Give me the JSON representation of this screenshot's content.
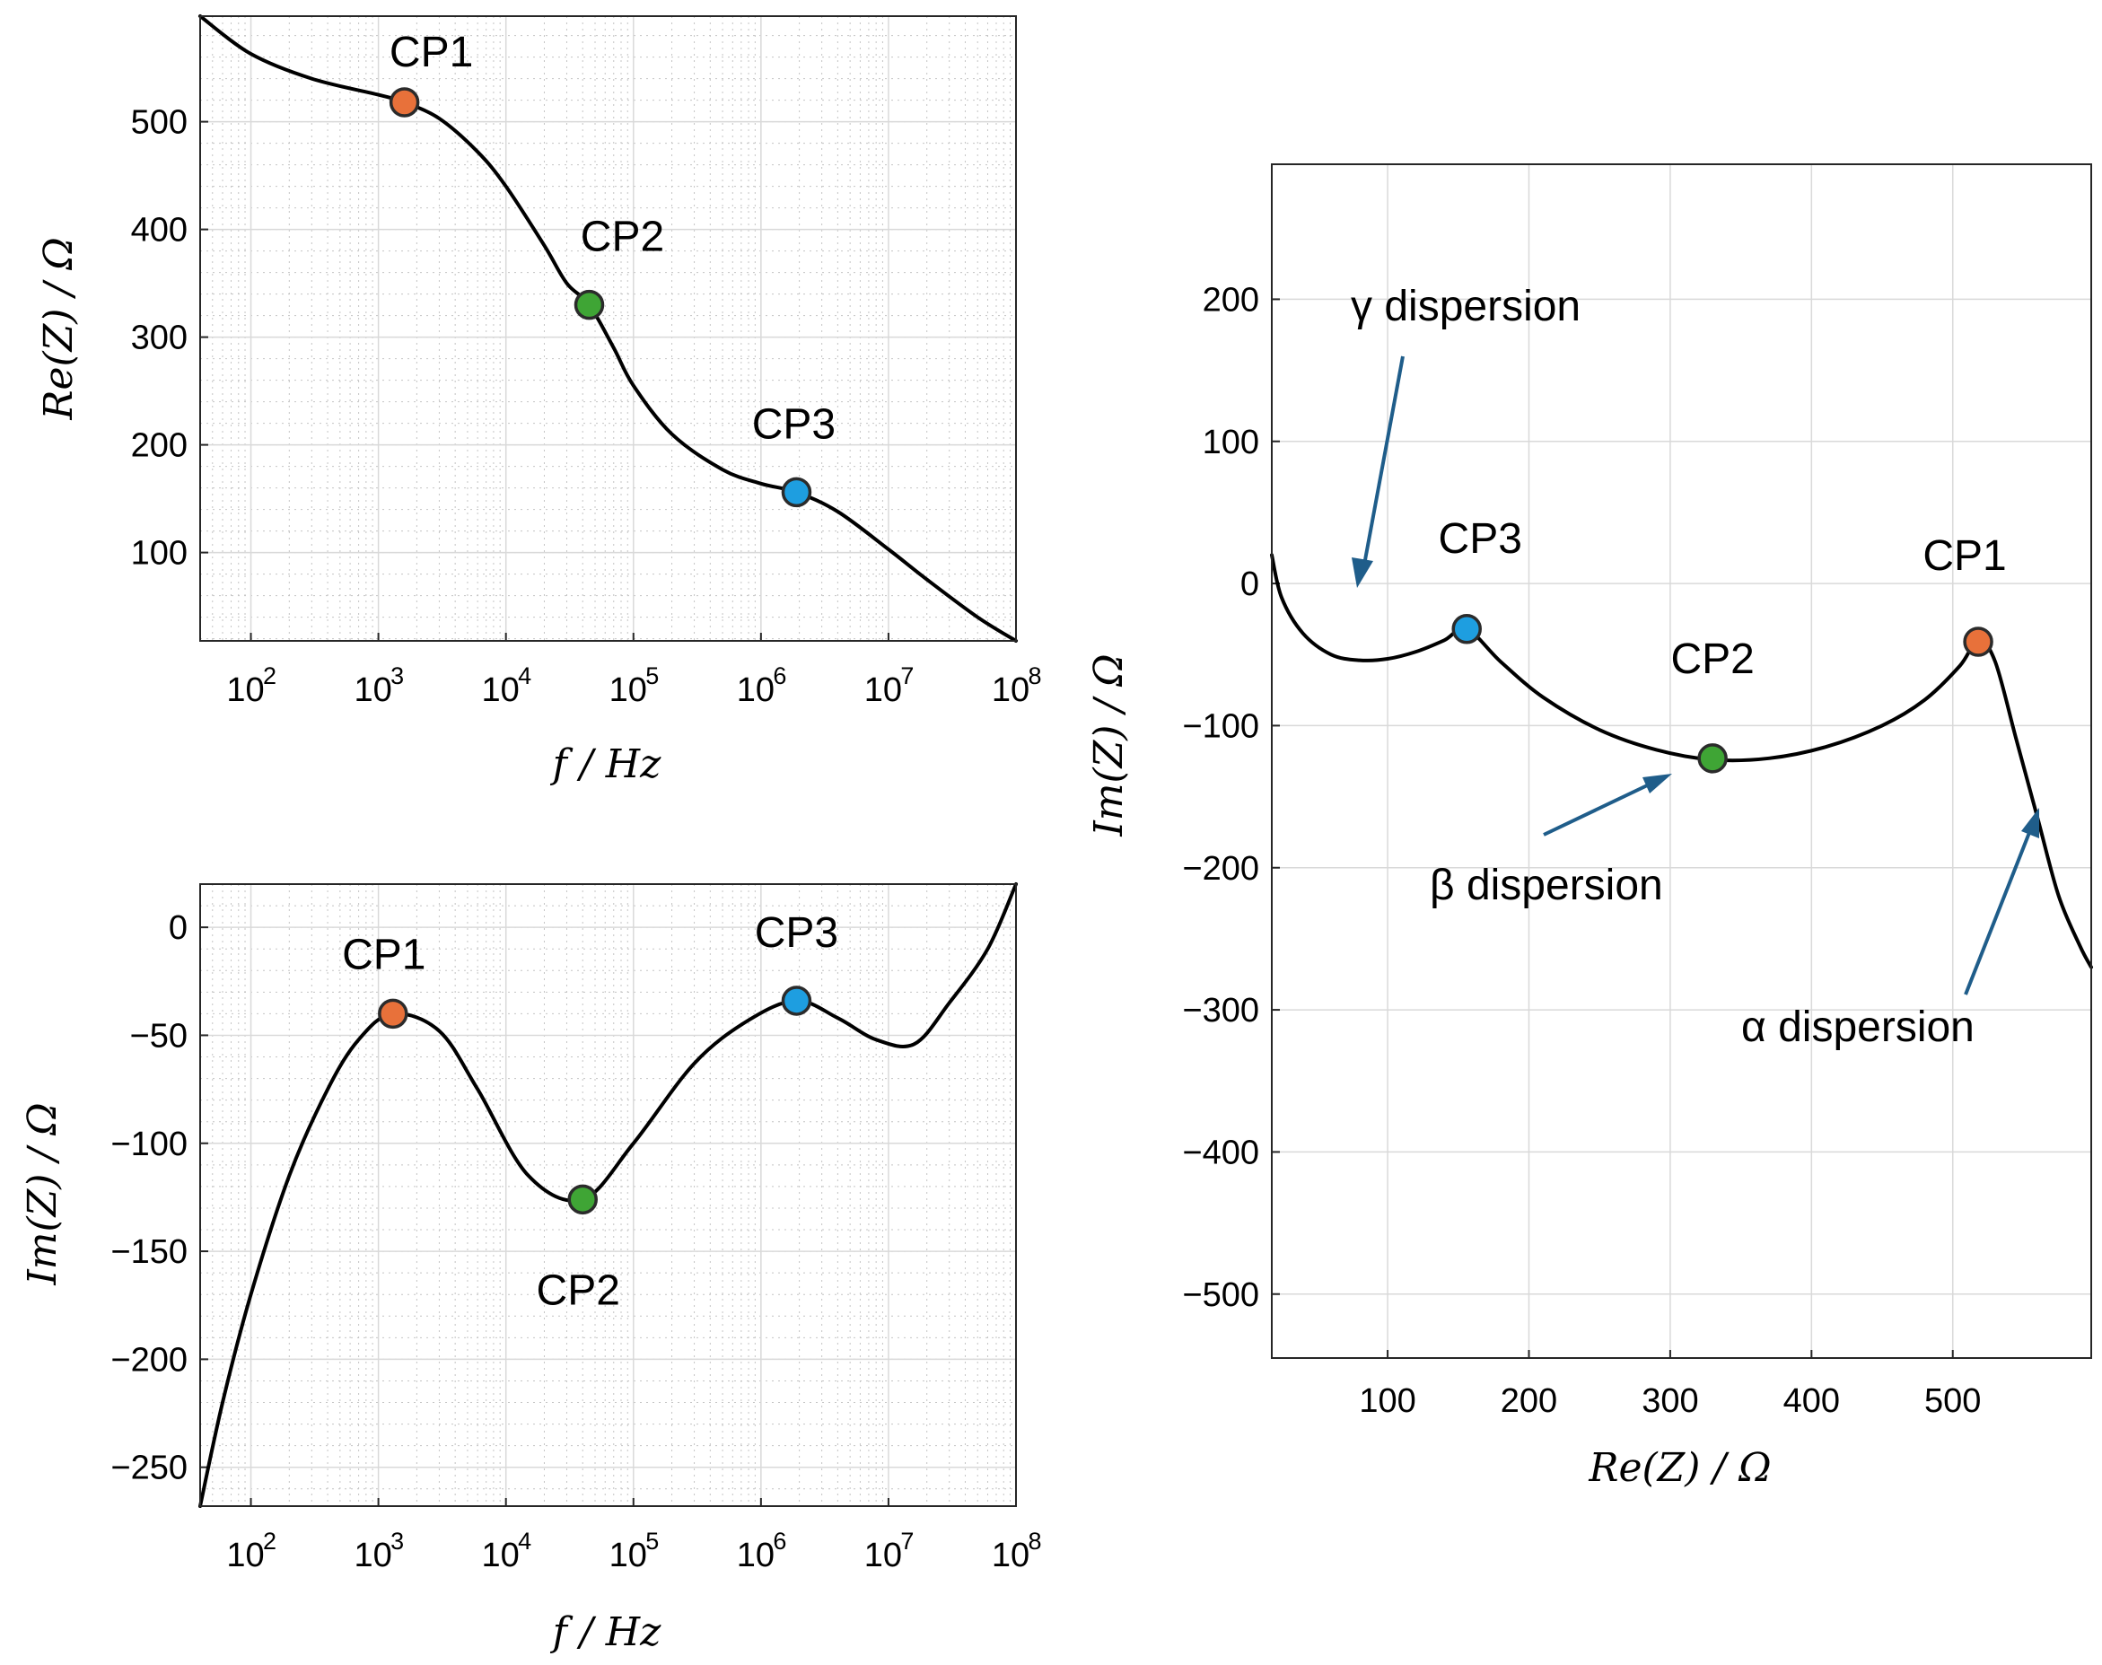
{
  "chart_data": [
    {
      "id": "re_vs_f",
      "type": "line",
      "xscale": "log",
      "xlabel": "f / Hz",
      "ylabel": "Re(Z) / Ω",
      "xlim": [
        40,
        100000000
      ],
      "ylim": [
        18,
        598
      ],
      "xticks": [
        100,
        1000,
        10000,
        100000,
        1000000,
        10000000,
        100000000
      ],
      "xtick_labels": [
        {
          "base": "10",
          "exp": "2"
        },
        {
          "base": "10",
          "exp": "3"
        },
        {
          "base": "10",
          "exp": "4"
        },
        {
          "base": "10",
          "exp": "5"
        },
        {
          "base": "10",
          "exp": "6"
        },
        {
          "base": "10",
          "exp": "7"
        },
        {
          "base": "10",
          "exp": "8"
        }
      ],
      "yticks": [
        100,
        200,
        300,
        400,
        500
      ],
      "ytick_labels": [
        "100",
        "200",
        "300",
        "400",
        "500"
      ],
      "grid": true,
      "series": [
        {
          "name": "Re(Z)",
          "x": [
            40,
            100,
            300,
            1000,
            1600,
            3000,
            6000,
            10000,
            20000,
            30000,
            45000,
            70000,
            100000,
            200000,
            500000,
            1000000,
            1900000,
            4000000,
            10000000,
            20000000,
            50000000,
            100000000
          ],
          "y": [
            598,
            563,
            540,
            525,
            518,
            503,
            472,
            440,
            385,
            350,
            330,
            290,
            255,
            210,
            177,
            164,
            156,
            138,
            103,
            75,
            40,
            18
          ]
        }
      ],
      "points": [
        {
          "label": "CP1",
          "x": 1600,
          "y": 518,
          "color": "#e8713a"
        },
        {
          "label": "CP2",
          "x": 45000,
          "y": 330,
          "color": "#3fa535"
        },
        {
          "label": "CP3",
          "x": 1900000,
          "y": 156,
          "color": "#1e9ee0"
        }
      ]
    },
    {
      "id": "im_vs_f",
      "type": "line",
      "xscale": "log",
      "xlabel": "f / Hz",
      "ylabel": "Im(Z) / Ω",
      "xlim": [
        40,
        100000000
      ],
      "ylim": [
        -268,
        20
      ],
      "xticks": [
        100,
        1000,
        10000,
        100000,
        1000000,
        10000000,
        100000000
      ],
      "xtick_labels": [
        {
          "base": "10",
          "exp": "2"
        },
        {
          "base": "10",
          "exp": "3"
        },
        {
          "base": "10",
          "exp": "4"
        },
        {
          "base": "10",
          "exp": "5"
        },
        {
          "base": "10",
          "exp": "6"
        },
        {
          "base": "10",
          "exp": "7"
        },
        {
          "base": "10",
          "exp": "8"
        }
      ],
      "yticks": [
        0,
        -50,
        -100,
        -150,
        -200,
        -250
      ],
      "ytick_labels": [
        "0",
        "−50",
        "−100",
        "−150",
        "−200",
        "−250"
      ],
      "grid": true,
      "series": [
        {
          "name": "Im(Z)",
          "x": [
            40,
            60,
            100,
            200,
            400,
            700,
            1300,
            3000,
            6000,
            15000,
            40000,
            100000,
            300000,
            800000,
            1900000,
            4000000,
            8000000,
            16000000,
            30000000,
            60000000,
            100000000
          ],
          "y": [
            -268,
            -220,
            -170,
            -115,
            -75,
            -52,
            -40,
            -48,
            -75,
            -115,
            -126,
            -100,
            -63,
            -43,
            -34,
            -42,
            -52,
            -54,
            -35,
            -10,
            20
          ]
        }
      ],
      "points": [
        {
          "label": "CP1",
          "x": 1300,
          "y": -40,
          "color": "#e8713a"
        },
        {
          "label": "CP2",
          "x": 40000,
          "y": -126,
          "color": "#3fa535"
        },
        {
          "label": "CP3",
          "x": 1900000,
          "y": -34,
          "color": "#1e9ee0"
        }
      ]
    },
    {
      "id": "nyquist",
      "type": "line",
      "xscale": "linear",
      "xlabel": "Re(Z) / Ω",
      "ylabel": "Im(Z) / Ω",
      "xlim": [
        18,
        598
      ],
      "ylim": [
        -545,
        295
      ],
      "xticks": [
        100,
        200,
        300,
        400,
        500
      ],
      "xtick_labels": [
        "100",
        "200",
        "300",
        "400",
        "500"
      ],
      "yticks": [
        200,
        100,
        0,
        -100,
        -200,
        -300,
        -400,
        -500
      ],
      "ytick_labels": [
        "200",
        "100",
        "0",
        "−100",
        "−200",
        "−300",
        "−400",
        "−500"
      ],
      "grid": true,
      "series": [
        {
          "name": "Nyquist",
          "x": [
            18,
            25,
            40,
            60,
            80,
            100,
            120,
            140,
            156,
            180,
            210,
            250,
            290,
            330,
            370,
            410,
            450,
            480,
            505,
            518,
            530,
            545,
            560,
            575,
            590,
            598
          ],
          "y": [
            20,
            -10,
            -35,
            -50,
            -54,
            -53,
            -48,
            -40,
            -32,
            -55,
            -80,
            -103,
            -117,
            -124,
            -123,
            -115,
            -100,
            -82,
            -58,
            -40,
            -55,
            -110,
            -165,
            -220,
            -255,
            -270
          ]
        }
      ],
      "points": [
        {
          "label": "CP1",
          "x": 518,
          "y": -41,
          "color": "#e8713a"
        },
        {
          "label": "CP2",
          "x": 330,
          "y": -123,
          "color": "#3fa535"
        },
        {
          "label": "CP3",
          "x": 156,
          "y": -32,
          "color": "#1e9ee0"
        }
      ],
      "annotations": [
        {
          "text": "γ dispersion",
          "near": "top-left"
        },
        {
          "text": "β dispersion",
          "near": "middle"
        },
        {
          "text": "α dispersion",
          "near": "bottom-right"
        }
      ]
    }
  ]
}
